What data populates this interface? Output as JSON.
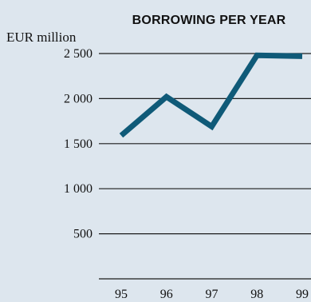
{
  "chart_data": {
    "type": "line",
    "title": "BORROWING PER YEAR",
    "ylabel": "EUR million",
    "xlabel": "",
    "categories": [
      "95",
      "96",
      "97",
      "98",
      "99"
    ],
    "series": [
      {
        "values": [
          1590,
          2020,
          1690,
          2480,
          2470
        ]
      }
    ],
    "ylim": [
      0,
      2500
    ],
    "yticks": [
      500,
      1000,
      1500,
      2000,
      2500
    ],
    "ytick_labels": [
      "500",
      "1 000",
      "1 500",
      "2 000",
      "2 500"
    ],
    "grid": true,
    "line_color": "#0f5a78",
    "background_color": "#dde6ee"
  }
}
